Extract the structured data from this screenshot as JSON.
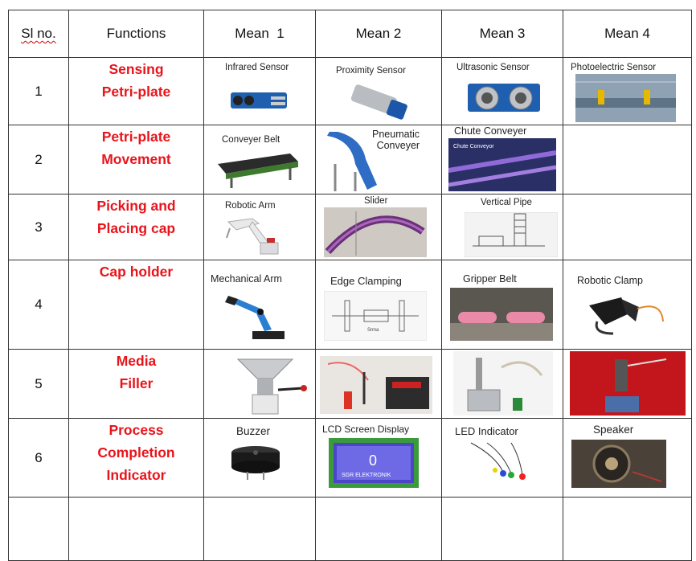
{
  "headers": [
    "Sl no.",
    "Functions",
    "Mean  1",
    "Mean 2",
    "Mean 3",
    "Mean 4"
  ],
  "rows": [
    {
      "sl": "1",
      "function_lines": [
        "Sensing",
        "Petri-plate"
      ],
      "means": [
        "Infrared Sensor",
        "Proximity Sensor",
        "Ultrasonic Sensor",
        "Photoelectric Sensor"
      ]
    },
    {
      "sl": "2",
      "function_lines": [
        "Petri-plate",
        "Movement"
      ],
      "means": [
        "Conveyer Belt",
        "Pneumatic\nConveyer",
        "Chute Conveyer",
        ""
      ]
    },
    {
      "sl": "3",
      "function_lines": [
        "Picking and",
        "Placing cap"
      ],
      "means": [
        "Robotic Arm",
        "Slider",
        "Vertical Pipe",
        ""
      ]
    },
    {
      "sl": "4",
      "function_lines": [
        "Cap holder"
      ],
      "means": [
        "Mechanical Arm",
        "Edge Clamping",
        "Gripper Belt",
        "Robotic Clamp"
      ]
    },
    {
      "sl": "5",
      "function_lines": [
        "Media",
        "Filler"
      ],
      "means": [
        "",
        "",
        "",
        ""
      ]
    },
    {
      "sl": "6",
      "function_lines": [
        "Process",
        "Completion",
        "Indicator"
      ],
      "means": [
        "Buzzer",
        "LCD Screen Display",
        "LED Indicator",
        "Speaker"
      ]
    }
  ],
  "image_text": {
    "chute_label": "Chute Conveyor",
    "lcd_digit": "0",
    "lcd_text": "SGR ELEKTRONIK",
    "edge_clamp_label": "Srma"
  },
  "colors": {
    "function_text": "#e8141b",
    "border": "#333333"
  }
}
